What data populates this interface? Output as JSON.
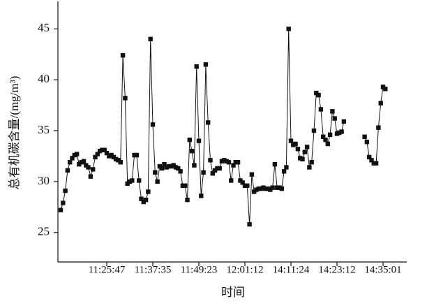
{
  "chart_data": {
    "type": "line",
    "x_label": "时间",
    "y_label": "总有机碳含量/(mg/m³)",
    "categories": [
      null,
      null,
      null,
      null,
      null,
      null,
      null,
      null,
      null,
      null,
      null,
      null,
      null,
      null,
      null,
      null,
      null,
      null,
      null,
      null,
      "11:25:47",
      null,
      null,
      null,
      null,
      null,
      null,
      null,
      null,
      null,
      null,
      null,
      null,
      null,
      null,
      null,
      null,
      null,
      null,
      null,
      "11:37:35",
      null,
      null,
      null,
      null,
      null,
      null,
      null,
      null,
      null,
      null,
      null,
      null,
      null,
      null,
      null,
      null,
      null,
      null,
      null,
      "11:49:23",
      null,
      null,
      null,
      null,
      null,
      null,
      null,
      null,
      null,
      null,
      null,
      null,
      null,
      null,
      null,
      null,
      null,
      null,
      null,
      "12:01:12",
      null,
      null,
      null,
      null,
      null,
      null,
      null,
      null,
      null,
      null,
      null,
      null,
      null,
      null,
      null,
      null,
      null,
      null,
      null,
      "14:11:24",
      null,
      null,
      null,
      null,
      null,
      null,
      null,
      null,
      null,
      null,
      null,
      null,
      null,
      null,
      null,
      null,
      null,
      null,
      null,
      "14:23:12",
      null,
      null,
      null,
      null,
      null,
      null,
      null,
      null,
      null,
      null,
      null,
      null,
      null,
      null,
      null,
      null,
      null,
      null,
      null,
      "14:35:01",
      null
    ],
    "series": [
      {
        "name": null,
        "color": "#111111",
        "values": [
          27.2,
          27.9,
          29.1,
          31.1,
          31.9,
          32.3,
          32.6,
          32.7,
          31.7,
          31.9,
          32.0,
          31.6,
          31.4,
          30.5,
          31.2,
          32.4,
          32.7,
          33.0,
          33.1,
          33.1,
          32.8,
          32.5,
          32.6,
          32.4,
          32.2,
          32.1,
          31.9,
          42.4,
          38.2,
          29.8,
          30.0,
          30.1,
          32.6,
          32.6,
          30.1,
          28.3,
          28.0,
          28.2,
          29.0,
          44.0,
          35.6,
          30.9,
          30.0,
          31.5,
          31.3,
          31.7,
          31.4,
          31.5,
          31.5,
          31.6,
          31.4,
          31.3,
          31.0,
          29.6,
          29.6,
          28.2,
          34.1,
          33.0,
          31.6,
          41.3,
          34.0,
          28.6,
          30.9,
          41.5,
          35.8,
          32.1,
          30.8,
          31.1,
          31.3,
          31.3,
          32.0,
          32.1,
          32.0,
          31.9,
          30.1,
          31.6,
          31.9,
          31.9,
          30.1,
          29.9,
          29.6,
          29.6,
          25.8,
          30.7,
          29.0,
          29.2,
          29.3,
          29.3,
          29.4,
          29.3,
          29.3,
          29.2,
          29.4,
          31.7,
          29.4,
          29.4,
          29.3,
          31.0,
          31.4,
          45.0,
          34.0,
          33.6,
          33.7,
          33.2,
          32.3,
          32.2,
          32.9,
          33.4,
          31.4,
          31.9,
          35.0,
          38.7,
          38.5,
          37.1,
          34.4,
          34.1,
          33.7,
          34.6,
          36.9,
          36.2,
          34.7,
          34.8,
          34.9,
          35.9,
          null,
          null,
          null,
          null,
          null,
          null,
          null,
          null,
          34.4,
          33.9,
          32.4,
          32.1,
          31.8,
          31.8,
          35.3,
          37.7,
          39.3,
          39.1
        ]
      }
    ],
    "ylim": [
      22.1,
      47.7
    ],
    "yticks": [
      25,
      30,
      35,
      40,
      45
    ]
  }
}
